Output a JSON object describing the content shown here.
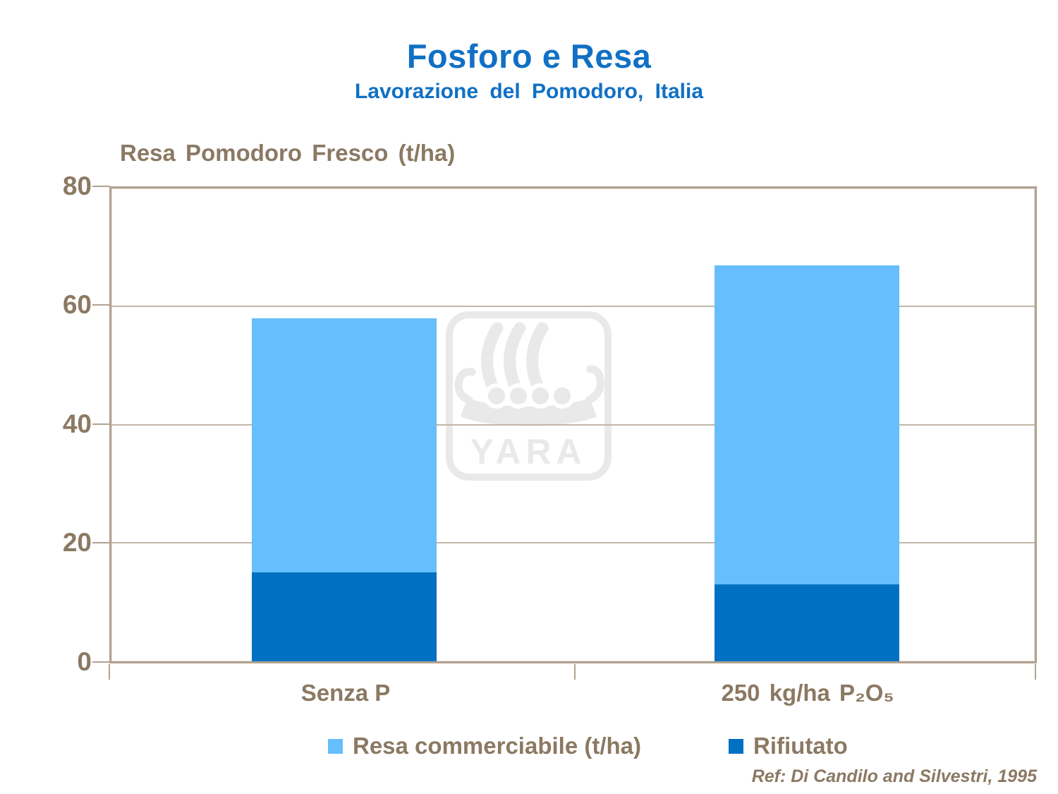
{
  "slide": {
    "title": "Fosforo e Resa",
    "subtitle": "Lavorazione del Pomodoro, Italia",
    "reference": "Ref: Di Candilo and Silvestri, 1995",
    "watermark": "YARA"
  },
  "colors": {
    "title_blue": "#1070C4",
    "text_brown": "#8B7963",
    "frame_tan": "#B1A290",
    "grid_tan": "#C3B7A7",
    "watermark_gray": "#E9E9E9",
    "bar_light_blue": "#66BEFC",
    "bar_dark_blue": "#0071C2"
  },
  "chart_data": {
    "type": "bar",
    "stacked": true,
    "title": "Fosforo e Resa",
    "subtitle": "Lavorazione del Pomodoro, Italia",
    "ylabel": "Resa Pomodoro Fresco (t/ha)",
    "ylim": [
      0,
      80
    ],
    "yticks": [
      0,
      20,
      40,
      60,
      80
    ],
    "grid": true,
    "legend_position": "bottom",
    "categories": [
      "Senza P",
      "250 kg/ha  P₂O₅"
    ],
    "series": [
      {
        "name": "Resa commerciabile (t/ha)",
        "color": "#66BEFC",
        "values": [
          43,
          54
        ]
      },
      {
        "name": "Rifiutato",
        "color": "#0071C2",
        "values": [
          15,
          13
        ]
      }
    ],
    "totals": [
      58,
      67
    ]
  }
}
